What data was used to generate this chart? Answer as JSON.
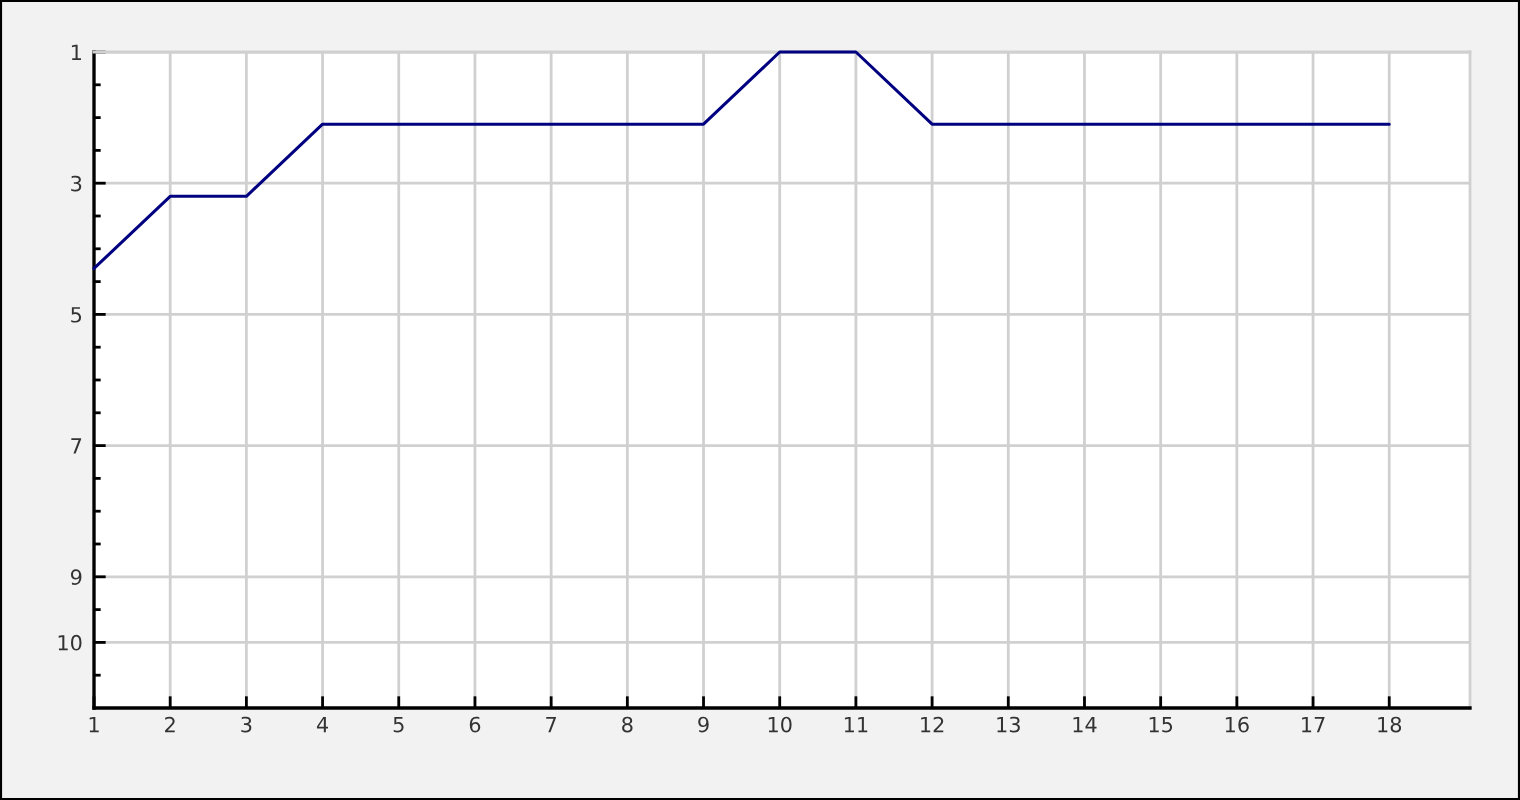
{
  "chart_data": {
    "type": "line",
    "x": [
      1,
      2,
      3,
      4,
      5,
      6,
      7,
      8,
      9,
      10,
      11,
      12,
      13,
      14,
      15,
      16,
      17,
      18
    ],
    "series": [
      {
        "color": "#000080",
        "values": [
          4.3,
          3.2,
          3.2,
          2.1,
          2.1,
          2.1,
          2.1,
          2.1,
          2.1,
          1,
          1,
          2.1,
          2.1,
          2.1,
          2.1,
          2.1,
          2.1,
          2.1
        ]
      }
    ],
    "xlim": [
      1,
      19.06
    ],
    "xticks": [
      1,
      2,
      3,
      4,
      5,
      6,
      7,
      8,
      9,
      10,
      11,
      12,
      13,
      14,
      15,
      16,
      17,
      18
    ],
    "ylim": [
      11,
      1
    ],
    "yticks": [
      1,
      {
        "value": 1.5,
        "label": null
      },
      {
        "value": 2,
        "label": null
      },
      {
        "value": 2.5,
        "label": null
      },
      3,
      {
        "value": 3.5,
        "label": null
      },
      {
        "value": 4,
        "label": null
      },
      {
        "value": 4.5,
        "label": null
      },
      5,
      {
        "value": 5.5,
        "label": null
      },
      {
        "value": 6,
        "label": null
      },
      {
        "value": 6.5,
        "label": null
      },
      7,
      {
        "value": 7.5,
        "label": null
      },
      {
        "value": 8,
        "label": null
      },
      {
        "value": 8.5,
        "label": null
      },
      9,
      {
        "value": 9.5,
        "label": null
      },
      10,
      {
        "value": 10.5,
        "label": null
      }
    ],
    "grid": true
  }
}
